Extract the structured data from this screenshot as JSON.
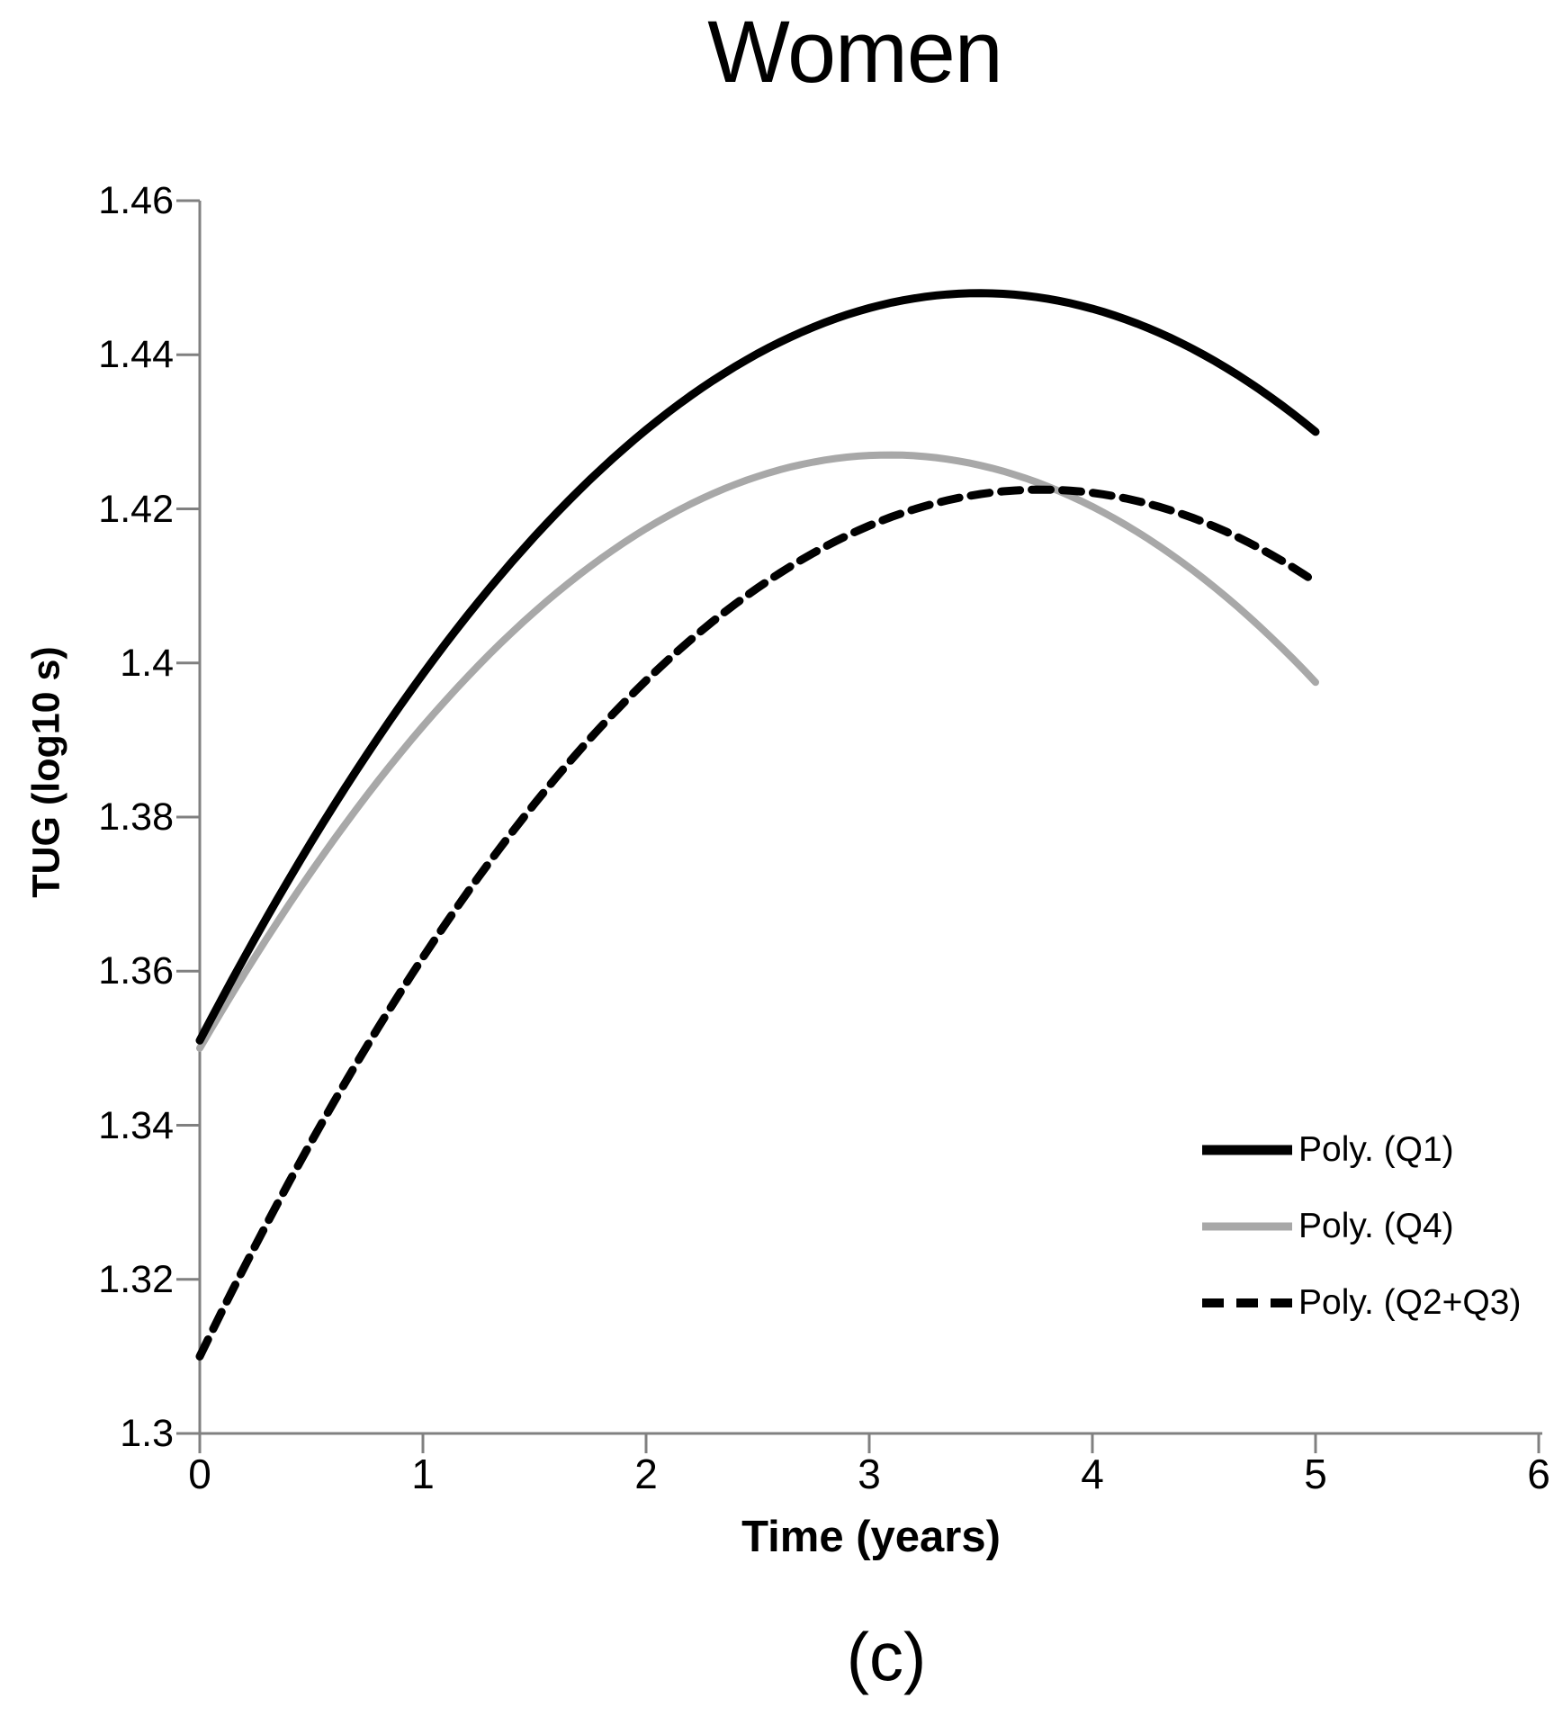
{
  "chart_data": {
    "type": "line",
    "title": "Women",
    "xlabel": "Time (years)",
    "ylabel": "TUG (log10 s)",
    "caption": "(c)",
    "xlim": [
      0,
      6
    ],
    "ylim": [
      1.3,
      1.46
    ],
    "grid": false,
    "legend_position": "inside-right-bottom",
    "x_ticks": [
      "0",
      "1",
      "2",
      "3",
      "4",
      "5",
      "6"
    ],
    "y_ticks": [
      "1.46",
      "1.44",
      "1.42",
      "1.4",
      "1.38",
      "1.36",
      "1.34",
      "1.32",
      "1.3"
    ],
    "x_sample": [
      0,
      0.5,
      1,
      1.5,
      2,
      2.5,
      3,
      3.5,
      4,
      4.5,
      5
    ],
    "series": [
      {
        "name": "Poly. (Q1)",
        "color": "#000000",
        "style": "solid",
        "width": 9,
        "poly": {
          "a": -0.0079429,
          "b": 0.0555143,
          "c": 1.351
        },
        "values": [
          1.351,
          1.3768,
          1.3986,
          1.4164,
          1.4303,
          1.4401,
          1.4461,
          1.448,
          1.446,
          1.44,
          1.43
        ]
      },
      {
        "name": "Poly. (Q4)",
        "color": "#A8A8A8",
        "style": "solid",
        "width": 8,
        "poly": {
          "a": -0.008073,
          "b": 0.049865,
          "c": 1.35
        },
        "values": [
          1.35,
          1.3729,
          1.3918,
          1.4066,
          1.4174,
          1.4242,
          1.4269,
          1.4256,
          1.4203,
          1.4109,
          1.3975
        ]
      },
      {
        "name": "Poly. (Q2+Q3)",
        "color": "#000000",
        "style": "dashed",
        "width": 9,
        "poly": {
          "a": -0.0079194,
          "b": 0.059697,
          "c": 1.31
        },
        "values": [
          1.31,
          1.3379,
          1.3618,
          1.3817,
          1.3977,
          1.4097,
          1.4178,
          1.4219,
          1.4221,
          1.4183,
          1.4105
        ]
      }
    ],
    "axis_color": "#808080",
    "text_color": "#000000"
  }
}
